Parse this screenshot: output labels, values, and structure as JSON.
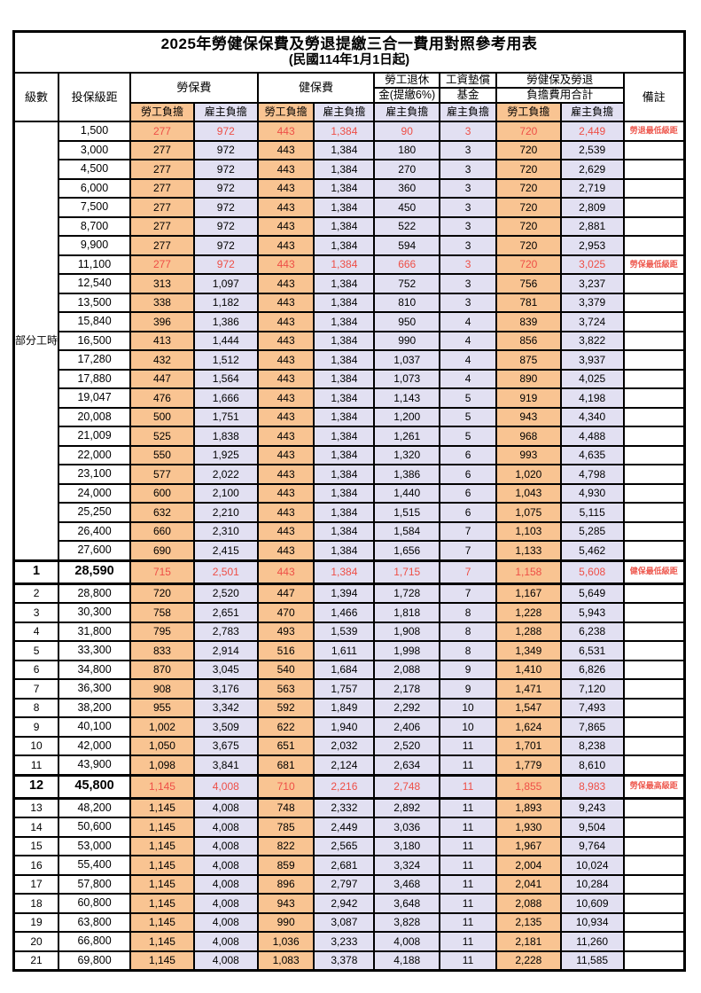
{
  "title": "2025年勞健保保費及勞退提繳三合一費用對照參考用表",
  "subtitle": "(民國114年1月1日起)",
  "header": {
    "level": "級數",
    "bracket": "投保級距",
    "labor_fee": "勞保費",
    "health_fee": "健保費",
    "pension_line1": "勞工退休",
    "pension_line2": "金(提繳6%)",
    "wage_fund_line1": "工資墊償",
    "wage_fund_line2": "基金",
    "total_line1": "勞健保及勞退",
    "total_line2": "負擔費用合計",
    "employee_burden": "勞工負擔",
    "employer_burden": "雇主負擔",
    "note": "備註"
  },
  "part_time_label": "部分工時",
  "part_time_rowspan": 23,
  "colors": {
    "employee_fill": "#f9c492",
    "employer_fill": "#e2e0f2",
    "highlight_red": "#ee4f47",
    "border": "#000000"
  },
  "notes_legend": [
    "勞退最低級距",
    "勞保最低級距",
    "健保最低級距",
    "勞保最高級距"
  ],
  "rows": [
    {
      "br": "1,500",
      "c": [
        "277",
        "972",
        "443",
        "1,384",
        "90",
        "3",
        "720",
        "2,449"
      ],
      "note": "勞退最低級距",
      "red": true
    },
    {
      "br": "3,000",
      "c": [
        "277",
        "972",
        "443",
        "1,384",
        "180",
        "3",
        "720",
        "2,539"
      ],
      "note": ""
    },
    {
      "br": "4,500",
      "c": [
        "277",
        "972",
        "443",
        "1,384",
        "270",
        "3",
        "720",
        "2,629"
      ],
      "note": ""
    },
    {
      "br": "6,000",
      "c": [
        "277",
        "972",
        "443",
        "1,384",
        "360",
        "3",
        "720",
        "2,719"
      ],
      "note": ""
    },
    {
      "br": "7,500",
      "c": [
        "277",
        "972",
        "443",
        "1,384",
        "450",
        "3",
        "720",
        "2,809"
      ],
      "note": ""
    },
    {
      "br": "8,700",
      "c": [
        "277",
        "972",
        "443",
        "1,384",
        "522",
        "3",
        "720",
        "2,881"
      ],
      "note": ""
    },
    {
      "br": "9,900",
      "c": [
        "277",
        "972",
        "443",
        "1,384",
        "594",
        "3",
        "720",
        "2,953"
      ],
      "note": ""
    },
    {
      "br": "11,100",
      "c": [
        "277",
        "972",
        "443",
        "1,384",
        "666",
        "3",
        "720",
        "3,025"
      ],
      "note": "勞保最低級距",
      "red": true
    },
    {
      "br": "12,540",
      "c": [
        "313",
        "1,097",
        "443",
        "1,384",
        "752",
        "3",
        "756",
        "3,237"
      ],
      "note": ""
    },
    {
      "br": "13,500",
      "c": [
        "338",
        "1,182",
        "443",
        "1,384",
        "810",
        "3",
        "781",
        "3,379"
      ],
      "note": ""
    },
    {
      "br": "15,840",
      "c": [
        "396",
        "1,386",
        "443",
        "1,384",
        "950",
        "4",
        "839",
        "3,724"
      ],
      "note": ""
    },
    {
      "br": "16,500",
      "c": [
        "413",
        "1,444",
        "443",
        "1,384",
        "990",
        "4",
        "856",
        "3,822"
      ],
      "note": ""
    },
    {
      "br": "17,280",
      "c": [
        "432",
        "1,512",
        "443",
        "1,384",
        "1,037",
        "4",
        "875",
        "3,937"
      ],
      "note": ""
    },
    {
      "br": "17,880",
      "c": [
        "447",
        "1,564",
        "443",
        "1,384",
        "1,073",
        "4",
        "890",
        "4,025"
      ],
      "note": ""
    },
    {
      "br": "19,047",
      "c": [
        "476",
        "1,666",
        "443",
        "1,384",
        "1,143",
        "5",
        "919",
        "4,198"
      ],
      "note": ""
    },
    {
      "br": "20,008",
      "c": [
        "500",
        "1,751",
        "443",
        "1,384",
        "1,200",
        "5",
        "943",
        "4,340"
      ],
      "note": ""
    },
    {
      "br": "21,009",
      "c": [
        "525",
        "1,838",
        "443",
        "1,384",
        "1,261",
        "5",
        "968",
        "4,488"
      ],
      "note": ""
    },
    {
      "br": "22,000",
      "c": [
        "550",
        "1,925",
        "443",
        "1,384",
        "1,320",
        "6",
        "993",
        "4,635"
      ],
      "note": ""
    },
    {
      "br": "23,100",
      "c": [
        "577",
        "2,022",
        "443",
        "1,384",
        "1,386",
        "6",
        "1,020",
        "4,798"
      ],
      "note": ""
    },
    {
      "br": "24,000",
      "c": [
        "600",
        "2,100",
        "443",
        "1,384",
        "1,440",
        "6",
        "1,043",
        "4,930"
      ],
      "note": ""
    },
    {
      "br": "25,250",
      "c": [
        "632",
        "2,210",
        "443",
        "1,384",
        "1,515",
        "6",
        "1,075",
        "5,115"
      ],
      "note": ""
    },
    {
      "br": "26,400",
      "c": [
        "660",
        "2,310",
        "443",
        "1,384",
        "1,584",
        "7",
        "1,103",
        "5,285"
      ],
      "note": ""
    },
    {
      "br": "27,600",
      "c": [
        "690",
        "2,415",
        "443",
        "1,384",
        "1,656",
        "7",
        "1,133",
        "5,462"
      ],
      "note": ""
    },
    {
      "lv": "1",
      "br": "28,590",
      "c": [
        "715",
        "2,501",
        "443",
        "1,384",
        "1,715",
        "7",
        "1,158",
        "5,608"
      ],
      "note": "健保最低級距",
      "red": true,
      "bold": true
    },
    {
      "lv": "2",
      "br": "28,800",
      "c": [
        "720",
        "2,520",
        "447",
        "1,394",
        "1,728",
        "7",
        "1,167",
        "5,649"
      ],
      "note": ""
    },
    {
      "lv": "3",
      "br": "30,300",
      "c": [
        "758",
        "2,651",
        "470",
        "1,466",
        "1,818",
        "8",
        "1,228",
        "5,943"
      ],
      "note": ""
    },
    {
      "lv": "4",
      "br": "31,800",
      "c": [
        "795",
        "2,783",
        "493",
        "1,539",
        "1,908",
        "8",
        "1,288",
        "6,238"
      ],
      "note": ""
    },
    {
      "lv": "5",
      "br": "33,300",
      "c": [
        "833",
        "2,914",
        "516",
        "1,611",
        "1,998",
        "8",
        "1,349",
        "6,531"
      ],
      "note": ""
    },
    {
      "lv": "6",
      "br": "34,800",
      "c": [
        "870",
        "3,045",
        "540",
        "1,684",
        "2,088",
        "9",
        "1,410",
        "6,826"
      ],
      "note": ""
    },
    {
      "lv": "7",
      "br": "36,300",
      "c": [
        "908",
        "3,176",
        "563",
        "1,757",
        "2,178",
        "9",
        "1,471",
        "7,120"
      ],
      "note": ""
    },
    {
      "lv": "8",
      "br": "38,200",
      "c": [
        "955",
        "3,342",
        "592",
        "1,849",
        "2,292",
        "10",
        "1,547",
        "7,493"
      ],
      "note": ""
    },
    {
      "lv": "9",
      "br": "40,100",
      "c": [
        "1,002",
        "3,509",
        "622",
        "1,940",
        "2,406",
        "10",
        "1,624",
        "7,865"
      ],
      "note": ""
    },
    {
      "lv": "10",
      "br": "42,000",
      "c": [
        "1,050",
        "3,675",
        "651",
        "2,032",
        "2,520",
        "11",
        "1,701",
        "8,238"
      ],
      "note": ""
    },
    {
      "lv": "11",
      "br": "43,900",
      "c": [
        "1,098",
        "3,841",
        "681",
        "2,124",
        "2,634",
        "11",
        "1,779",
        "8,610"
      ],
      "note": ""
    },
    {
      "lv": "12",
      "br": "45,800",
      "c": [
        "1,145",
        "4,008",
        "710",
        "2,216",
        "2,748",
        "11",
        "1,855",
        "8,983"
      ],
      "note": "勞保最高級距",
      "red": true,
      "bold": true
    },
    {
      "lv": "13",
      "br": "48,200",
      "c": [
        "1,145",
        "4,008",
        "748",
        "2,332",
        "2,892",
        "11",
        "1,893",
        "9,243"
      ],
      "note": ""
    },
    {
      "lv": "14",
      "br": "50,600",
      "c": [
        "1,145",
        "4,008",
        "785",
        "2,449",
        "3,036",
        "11",
        "1,930",
        "9,504"
      ],
      "note": ""
    },
    {
      "lv": "15",
      "br": "53,000",
      "c": [
        "1,145",
        "4,008",
        "822",
        "2,565",
        "3,180",
        "11",
        "1,967",
        "9,764"
      ],
      "note": ""
    },
    {
      "lv": "16",
      "br": "55,400",
      "c": [
        "1,145",
        "4,008",
        "859",
        "2,681",
        "3,324",
        "11",
        "2,004",
        "10,024"
      ],
      "note": ""
    },
    {
      "lv": "17",
      "br": "57,800",
      "c": [
        "1,145",
        "4,008",
        "896",
        "2,797",
        "3,468",
        "11",
        "2,041",
        "10,284"
      ],
      "note": ""
    },
    {
      "lv": "18",
      "br": "60,800",
      "c": [
        "1,145",
        "4,008",
        "943",
        "2,942",
        "3,648",
        "11",
        "2,088",
        "10,609"
      ],
      "note": ""
    },
    {
      "lv": "19",
      "br": "63,800",
      "c": [
        "1,145",
        "4,008",
        "990",
        "3,087",
        "3,828",
        "11",
        "2,135",
        "10,934"
      ],
      "note": ""
    },
    {
      "lv": "20",
      "br": "66,800",
      "c": [
        "1,145",
        "4,008",
        "1,036",
        "3,233",
        "4,008",
        "11",
        "2,181",
        "11,260"
      ],
      "note": ""
    },
    {
      "lv": "21",
      "br": "69,800",
      "c": [
        "1,145",
        "4,008",
        "1,083",
        "3,378",
        "4,188",
        "11",
        "2,228",
        "11,585"
      ],
      "note": ""
    }
  ]
}
